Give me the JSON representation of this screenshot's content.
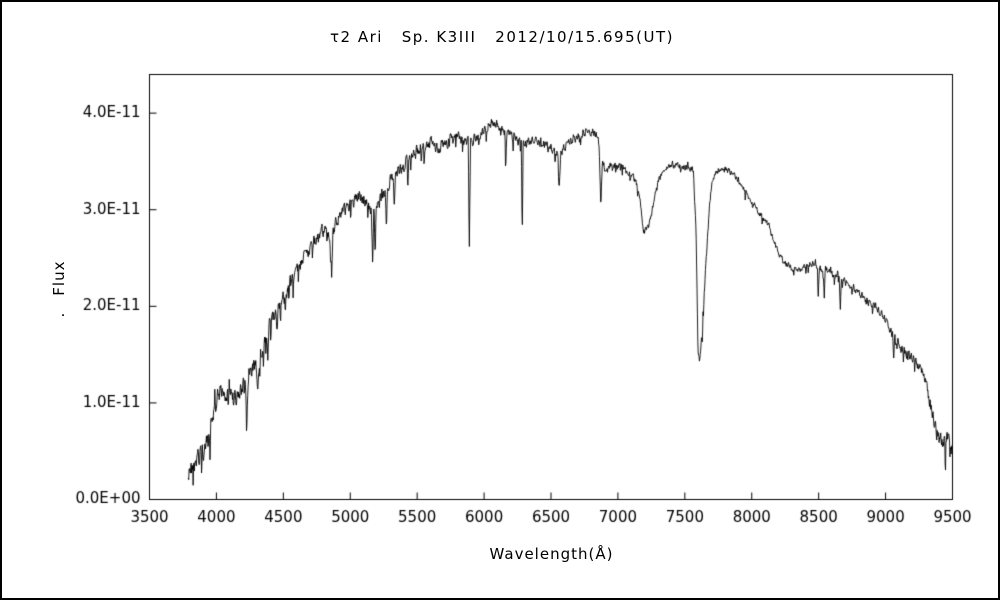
{
  "chart_data": {
    "type": "line",
    "title": "τ2 Ari   Sp. K3III   2012/10/15.695(UT)",
    "xlabel": "Wavelength(Å)",
    "ylabel": "Flux",
    "ylabel_suffix": ".",
    "line_color": "#000000",
    "background_color": "#ffffff",
    "grid": false,
    "legend": null,
    "xlim": [
      3500,
      9500
    ],
    "ylim": [
      0,
      4.4e-11
    ],
    "x_ticks": [
      3500,
      4000,
      4500,
      5000,
      5500,
      6000,
      6500,
      7000,
      7500,
      8000,
      8500,
      9000,
      9500
    ],
    "y_ticks": [
      {
        "value": 0,
        "label": "0.0E+00"
      },
      {
        "value": 1e-11,
        "label": "1.0E-11"
      },
      {
        "value": 2e-11,
        "label": "2.0E-11"
      },
      {
        "value": 3e-11,
        "label": "3.0E-11"
      },
      {
        "value": 4e-11,
        "label": "4.0E-11"
      }
    ],
    "flux_unit_scale": 1e-11,
    "x_data_range": [
      3790,
      9500
    ],
    "envelope_points": [
      [
        3790,
        0.3
      ],
      [
        3810,
        0.26
      ],
      [
        3830,
        0.4
      ],
      [
        3850,
        0.44
      ],
      [
        3870,
        0.42
      ],
      [
        3890,
        0.5
      ],
      [
        3910,
        0.5
      ],
      [
        3930,
        0.6
      ],
      [
        3950,
        0.72
      ],
      [
        3970,
        0.85
      ],
      [
        3990,
        1.0
      ],
      [
        4010,
        1.08
      ],
      [
        4040,
        1.12
      ],
      [
        4070,
        1.08
      ],
      [
        4100,
        1.12
      ],
      [
        4130,
        1.08
      ],
      [
        4160,
        1.06
      ],
      [
        4190,
        1.14
      ],
      [
        4220,
        1.26
      ],
      [
        4250,
        1.34
      ],
      [
        4280,
        1.4
      ],
      [
        4310,
        1.46
      ],
      [
        4340,
        1.55
      ],
      [
        4370,
        1.7
      ],
      [
        4400,
        1.84
      ],
      [
        4430,
        1.92
      ],
      [
        4460,
        1.98
      ],
      [
        4490,
        2.08
      ],
      [
        4520,
        2.14
      ],
      [
        4550,
        2.24
      ],
      [
        4580,
        2.28
      ],
      [
        4610,
        2.42
      ],
      [
        4640,
        2.48
      ],
      [
        4670,
        2.53
      ],
      [
        4700,
        2.6
      ],
      [
        4730,
        2.66
      ],
      [
        4760,
        2.72
      ],
      [
        4790,
        2.78
      ],
      [
        4820,
        2.78
      ],
      [
        4850,
        2.7
      ],
      [
        4880,
        2.82
      ],
      [
        4910,
        2.92
      ],
      [
        4940,
        2.97
      ],
      [
        4970,
        3.03
      ],
      [
        5000,
        3.05
      ],
      [
        5030,
        3.09
      ],
      [
        5060,
        3.11
      ],
      [
        5090,
        3.12
      ],
      [
        5120,
        3.08
      ],
      [
        5150,
        2.98
      ],
      [
        5180,
        2.96
      ],
      [
        5210,
        3.06
      ],
      [
        5240,
        3.16
      ],
      [
        5270,
        3.22
      ],
      [
        5300,
        3.3
      ],
      [
        5330,
        3.32
      ],
      [
        5360,
        3.4
      ],
      [
        5390,
        3.45
      ],
      [
        5420,
        3.49
      ],
      [
        5450,
        3.55
      ],
      [
        5480,
        3.58
      ],
      [
        5510,
        3.61
      ],
      [
        5540,
        3.64
      ],
      [
        5570,
        3.67
      ],
      [
        5600,
        3.7
      ],
      [
        5630,
        3.66
      ],
      [
        5660,
        3.63
      ],
      [
        5690,
        3.67
      ],
      [
        5720,
        3.69
      ],
      [
        5750,
        3.72
      ],
      [
        5780,
        3.74
      ],
      [
        5810,
        3.75
      ],
      [
        5840,
        3.72
      ],
      [
        5870,
        3.7
      ],
      [
        5900,
        3.7
      ],
      [
        5930,
        3.73
      ],
      [
        5960,
        3.76
      ],
      [
        5990,
        3.82
      ],
      [
        6020,
        3.86
      ],
      [
        6050,
        3.89
      ],
      [
        6080,
        3.89
      ],
      [
        6110,
        3.86
      ],
      [
        6140,
        3.83
      ],
      [
        6170,
        3.79
      ],
      [
        6200,
        3.76
      ],
      [
        6230,
        3.74
      ],
      [
        6260,
        3.72
      ],
      [
        6290,
        3.7
      ],
      [
        6320,
        3.69
      ],
      [
        6350,
        3.72
      ],
      [
        6380,
        3.72
      ],
      [
        6410,
        3.71
      ],
      [
        6440,
        3.69
      ],
      [
        6470,
        3.66
      ],
      [
        6500,
        3.63
      ],
      [
        6530,
        3.59
      ],
      [
        6560,
        3.55
      ],
      [
        6590,
        3.62
      ],
      [
        6620,
        3.68
      ],
      [
        6650,
        3.71
      ],
      [
        6680,
        3.74
      ],
      [
        6710,
        3.77
      ],
      [
        6740,
        3.79
      ],
      [
        6770,
        3.8
      ],
      [
        6800,
        3.8
      ],
      [
        6830,
        3.78
      ],
      [
        6850,
        3.74
      ],
      [
        6870,
        3.58
      ],
      [
        6900,
        3.42
      ],
      [
        6930,
        3.45
      ],
      [
        6960,
        3.46
      ],
      [
        6990,
        3.46
      ],
      [
        7020,
        3.45
      ],
      [
        7050,
        3.42
      ],
      [
        7080,
        3.39
      ],
      [
        7110,
        3.35
      ],
      [
        7140,
        3.26
      ],
      [
        7170,
        3.08
      ],
      [
        7200,
        2.85
      ],
      [
        7220,
        2.8
      ],
      [
        7240,
        2.88
      ],
      [
        7260,
        3.02
      ],
      [
        7280,
        3.18
      ],
      [
        7300,
        3.3
      ],
      [
        7330,
        3.38
      ],
      [
        7360,
        3.43
      ],
      [
        7390,
        3.45
      ],
      [
        7420,
        3.46
      ],
      [
        7450,
        3.46
      ],
      [
        7480,
        3.45
      ],
      [
        7510,
        3.45
      ],
      [
        7540,
        3.43
      ],
      [
        7565,
        3.4
      ],
      [
        7585,
        2.7
      ],
      [
        7598,
        1.55
      ],
      [
        7608,
        1.42
      ],
      [
        7618,
        1.52
      ],
      [
        7632,
        1.78
      ],
      [
        7650,
        2.25
      ],
      [
        7668,
        2.68
      ],
      [
        7686,
        3.08
      ],
      [
        7705,
        3.3
      ],
      [
        7725,
        3.37
      ],
      [
        7750,
        3.41
      ],
      [
        7780,
        3.43
      ],
      [
        7810,
        3.42
      ],
      [
        7840,
        3.39
      ],
      [
        7870,
        3.35
      ],
      [
        7900,
        3.3
      ],
      [
        7930,
        3.24
      ],
      [
        7960,
        3.17
      ],
      [
        7990,
        3.1
      ],
      [
        8020,
        3.04
      ],
      [
        8050,
        2.98
      ],
      [
        8080,
        2.92
      ],
      [
        8110,
        2.87
      ],
      [
        8140,
        2.78
      ],
      [
        8170,
        2.66
      ],
      [
        8200,
        2.55
      ],
      [
        8230,
        2.48
      ],
      [
        8260,
        2.44
      ],
      [
        8290,
        2.41
      ],
      [
        8320,
        2.38
      ],
      [
        8350,
        2.36
      ],
      [
        8380,
        2.39
      ],
      [
        8410,
        2.42
      ],
      [
        8440,
        2.44
      ],
      [
        8470,
        2.43
      ],
      [
        8500,
        2.39
      ],
      [
        8530,
        2.38
      ],
      [
        8560,
        2.39
      ],
      [
        8590,
        2.35
      ],
      [
        8620,
        2.3
      ],
      [
        8650,
        2.3
      ],
      [
        8680,
        2.27
      ],
      [
        8710,
        2.24
      ],
      [
        8740,
        2.21
      ],
      [
        8770,
        2.17
      ],
      [
        8800,
        2.14
      ],
      [
        8830,
        2.1
      ],
      [
        8860,
        2.06
      ],
      [
        8890,
        2.03
      ],
      [
        8920,
        2.0
      ],
      [
        8950,
        1.95
      ],
      [
        8980,
        1.9
      ],
      [
        9010,
        1.83
      ],
      [
        9040,
        1.75
      ],
      [
        9070,
        1.67
      ],
      [
        9100,
        1.6
      ],
      [
        9130,
        1.55
      ],
      [
        9160,
        1.51
      ],
      [
        9190,
        1.47
      ],
      [
        9220,
        1.44
      ],
      [
        9250,
        1.39
      ],
      [
        9280,
        1.3
      ],
      [
        9310,
        1.15
      ],
      [
        9340,
        0.95
      ],
      [
        9370,
        0.75
      ],
      [
        9400,
        0.62
      ],
      [
        9430,
        0.58
      ],
      [
        9460,
        0.66
      ],
      [
        9480,
        0.58
      ],
      [
        9500,
        0.55
      ]
    ],
    "absorption_lines": [
      {
        "center": 4226,
        "depth": 0.45,
        "halfwidth": 12
      },
      {
        "center": 4310,
        "depth": 0.4,
        "halfwidth": 15
      },
      {
        "center": 4383,
        "depth": 0.35,
        "halfwidth": 8
      },
      {
        "center": 4455,
        "depth": 0.3,
        "halfwidth": 8
      },
      {
        "center": 4861,
        "depth": 0.4,
        "halfwidth": 10
      },
      {
        "center": 5167,
        "depth": 0.5,
        "halfwidth": 8
      },
      {
        "center": 5186,
        "depth": 0.45,
        "halfwidth": 7
      },
      {
        "center": 5270,
        "depth": 0.4,
        "halfwidth": 9
      },
      {
        "center": 5330,
        "depth": 0.3,
        "halfwidth": 7
      },
      {
        "center": 5430,
        "depth": 0.28,
        "halfwidth": 6
      },
      {
        "center": 5890,
        "depth": 1.05,
        "halfwidth": 9
      },
      {
        "center": 6162,
        "depth": 0.35,
        "halfwidth": 7
      },
      {
        "center": 6285,
        "depth": 1.05,
        "halfwidth": 7
      },
      {
        "center": 6563,
        "depth": 0.35,
        "halfwidth": 9
      },
      {
        "center": 6872,
        "depth": 0.55,
        "halfwidth": 12
      },
      {
        "center": 7190,
        "depth": 0.15,
        "halfwidth": 25
      },
      {
        "center": 8498,
        "depth": 0.25,
        "halfwidth": 8
      },
      {
        "center": 8542,
        "depth": 0.3,
        "halfwidth": 8
      },
      {
        "center": 8662,
        "depth": 0.3,
        "halfwidth": 8
      },
      {
        "center": 9060,
        "depth": 0.25,
        "halfwidth": 8
      }
    ],
    "noise_profile": [
      [
        3790,
        0.14
      ],
      [
        3950,
        0.12
      ],
      [
        4100,
        0.1
      ],
      [
        4400,
        0.1
      ],
      [
        4700,
        0.09
      ],
      [
        5000,
        0.09
      ],
      [
        5300,
        0.085
      ],
      [
        5600,
        0.08
      ],
      [
        5900,
        0.07
      ],
      [
        6200,
        0.065
      ],
      [
        6500,
        0.06
      ],
      [
        6800,
        0.05
      ],
      [
        7100,
        0.045
      ],
      [
        7400,
        0.035
      ],
      [
        7600,
        0.05
      ],
      [
        7900,
        0.035
      ],
      [
        8200,
        0.04
      ],
      [
        8500,
        0.045
      ],
      [
        8800,
        0.05
      ],
      [
        9000,
        0.055
      ],
      [
        9200,
        0.07
      ],
      [
        9350,
        0.1
      ],
      [
        9500,
        0.13
      ]
    ]
  }
}
